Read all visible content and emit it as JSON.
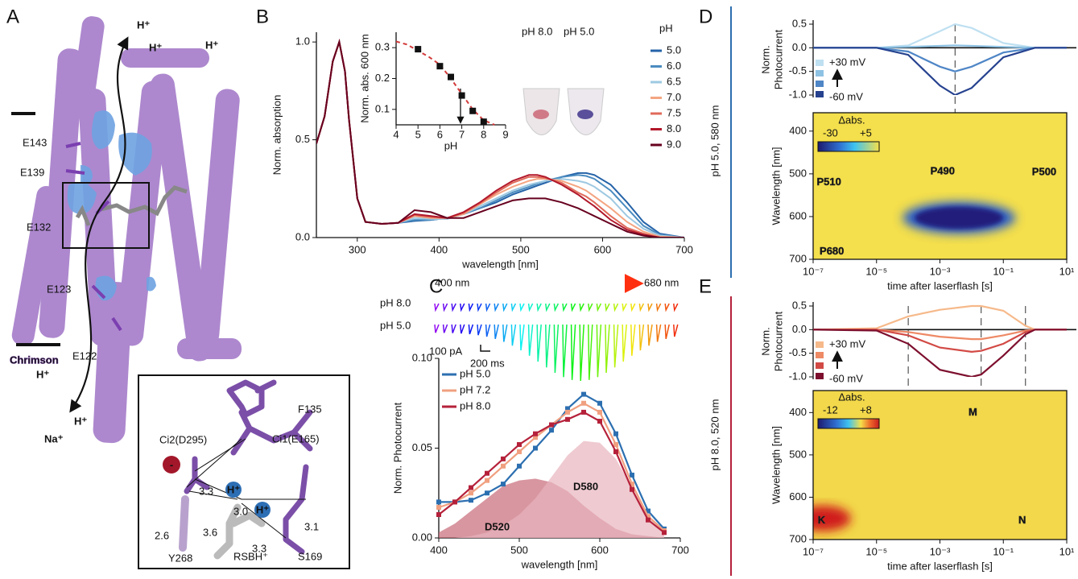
{
  "panel_labels": [
    "A",
    "B",
    "C",
    "D",
    "E"
  ],
  "panel_a": {
    "residues": [
      "E143",
      "E139",
      "E132",
      "E123",
      "E122"
    ],
    "ions": [
      "H⁺",
      "H⁺",
      "H⁺",
      "H⁺",
      "H⁺",
      "Na⁺"
    ],
    "protein": "Chrimson",
    "inset": {
      "residues": [
        "F135",
        "Ci1(E165)",
        "Ci2(D295)",
        "Y268",
        "RSBH⁺",
        "S169"
      ],
      "distances": [
        "3.3",
        "3.0",
        "3.6",
        "2.6",
        "3.3",
        "3.1"
      ],
      "charges": [
        "H⁺",
        "H⁺",
        "-"
      ]
    }
  },
  "panel_b_photo": [
    "pH 8.0",
    "pH 5.0"
  ],
  "panel_c_traces": {
    "start": "400 nm",
    "end": "680 nm",
    "rows": [
      "pH 8.0",
      "pH 5.0"
    ],
    "scale_current": "100 pA",
    "scale_time": "200 ms"
  },
  "side_labels": [
    "pH 5.0, 580 nm",
    "pH 8.0, 520 nm"
  ],
  "chart_data": [
    {
      "type": "line",
      "xlabel": "wavelength [nm]",
      "ylabel": "Norm.  absorption",
      "xlim": [
        250,
        700
      ],
      "ylim": [
        0,
        1.05
      ],
      "xticks": [
        300,
        400,
        500,
        600,
        700
      ],
      "yticks": [
        {
          "value": 0,
          "label": "0.0"
        },
        {
          "value": 0.5,
          "label": "0.5"
        },
        {
          "value": 1,
          "label": "1.0"
        }
      ],
      "legend_title": "pH",
      "x": [
        250,
        260,
        270,
        278,
        285,
        290,
        300,
        310,
        330,
        350,
        370,
        390,
        410,
        430,
        450,
        470,
        490,
        510,
        520,
        530,
        550,
        570,
        580,
        590,
        610,
        630,
        650,
        670,
        700
      ],
      "series": [
        {
          "name": "5.0",
          "color": "#2563a8",
          "values": [
            0.48,
            0.62,
            0.9,
            1.0,
            0.85,
            0.6,
            0.2,
            0.08,
            0.07,
            0.075,
            0.085,
            0.09,
            0.1,
            0.12,
            0.15,
            0.18,
            0.22,
            0.25,
            0.265,
            0.28,
            0.31,
            0.33,
            0.33,
            0.32,
            0.27,
            0.18,
            0.08,
            0.02,
            0
          ]
        },
        {
          "name": "6.0",
          "color": "#4b8cc0",
          "values": [
            0.48,
            0.62,
            0.9,
            1.0,
            0.85,
            0.6,
            0.2,
            0.08,
            0.07,
            0.075,
            0.09,
            0.09,
            0.1,
            0.12,
            0.15,
            0.19,
            0.23,
            0.26,
            0.275,
            0.29,
            0.31,
            0.32,
            0.315,
            0.3,
            0.24,
            0.15,
            0.06,
            0.015,
            0
          ]
        },
        {
          "name": "6.5",
          "color": "#9ec9e2",
          "values": [
            0.48,
            0.62,
            0.9,
            1.0,
            0.85,
            0.6,
            0.2,
            0.08,
            0.07,
            0.075,
            0.1,
            0.095,
            0.095,
            0.12,
            0.16,
            0.2,
            0.24,
            0.27,
            0.28,
            0.29,
            0.3,
            0.29,
            0.28,
            0.26,
            0.2,
            0.11,
            0.045,
            0.01,
            0
          ]
        },
        {
          "name": "7.0",
          "color": "#f4a582",
          "values": [
            0.48,
            0.62,
            0.9,
            1.0,
            0.85,
            0.6,
            0.2,
            0.08,
            0.07,
            0.075,
            0.11,
            0.1,
            0.1,
            0.12,
            0.17,
            0.22,
            0.26,
            0.29,
            0.3,
            0.3,
            0.29,
            0.26,
            0.24,
            0.21,
            0.15,
            0.08,
            0.03,
            0.005,
            0
          ]
        },
        {
          "name": "7.5",
          "color": "#e06a5a",
          "values": [
            0.48,
            0.62,
            0.9,
            1.0,
            0.85,
            0.6,
            0.2,
            0.08,
            0.07,
            0.075,
            0.115,
            0.105,
            0.1,
            0.125,
            0.175,
            0.23,
            0.28,
            0.31,
            0.31,
            0.305,
            0.28,
            0.23,
            0.21,
            0.18,
            0.11,
            0.05,
            0.02,
            0,
            0
          ]
        },
        {
          "name": "8.0",
          "color": "#b2182b",
          "values": [
            0.48,
            0.62,
            0.9,
            1.0,
            0.85,
            0.6,
            0.2,
            0.08,
            0.07,
            0.075,
            0.12,
            0.11,
            0.1,
            0.13,
            0.18,
            0.24,
            0.29,
            0.32,
            0.32,
            0.31,
            0.27,
            0.22,
            0.19,
            0.16,
            0.09,
            0.04,
            0.015,
            0,
            0
          ]
        },
        {
          "name": "9.0",
          "color": "#67001f",
          "values": [
            0.48,
            0.62,
            0.9,
            1.0,
            0.85,
            0.6,
            0.2,
            0.08,
            0.07,
            0.075,
            0.14,
            0.13,
            0.1,
            0.1,
            0.13,
            0.16,
            0.19,
            0.2,
            0.2,
            0.2,
            0.18,
            0.15,
            0.13,
            0.11,
            0.07,
            0.03,
            0.01,
            0,
            0
          ]
        }
      ]
    },
    {
      "type": "scatter",
      "xlabel": "pH",
      "ylabel": "Norm. abs. 600 nm",
      "xlim": [
        4,
        9
      ],
      "ylim": [
        0.05,
        0.35
      ],
      "xticks": [
        4,
        5,
        6,
        7,
        8,
        9
      ],
      "yticks": [
        0.1,
        0.2,
        0.3
      ],
      "x": [
        5,
        6,
        6.5,
        7,
        7.5,
        8
      ],
      "series": [
        {
          "color": "#111111",
          "values": [
            0.295,
            0.24,
            0.205,
            0.145,
            0.095,
            0.06
          ]
        }
      ],
      "fit": {
        "color": "#d33a3a",
        "x": [
          4,
          4.5,
          5,
          5.5,
          6,
          6.5,
          7,
          7.5,
          8,
          8.5
        ],
        "values": [
          0.32,
          0.31,
          0.29,
          0.27,
          0.245,
          0.2,
          0.15,
          0.1,
          0.065,
          0.05
        ]
      }
    },
    {
      "type": "line",
      "xlabel": "wavelength [nm]",
      "ylabel": "Norm. Photocurrent",
      "xlim": [
        400,
        700
      ],
      "ylim": [
        0,
        0.1
      ],
      "xticks": [
        400,
        500,
        600,
        700
      ],
      "yticks": [
        {
          "value": 0,
          "label": "0.00"
        },
        {
          "value": 0.05,
          "label": "0.05"
        },
        {
          "value": 0.1,
          "label": "0.10"
        }
      ],
      "x": [
        400,
        420,
        440,
        460,
        480,
        500,
        520,
        540,
        560,
        580,
        600,
        620,
        640,
        660,
        680
      ],
      "series": [
        {
          "name": "D520",
          "color": "#c76a78",
          "area": true,
          "values": [
            0.003,
            0.008,
            0.015,
            0.022,
            0.029,
            0.032,
            0.033,
            0.031,
            0.026,
            0.018,
            0.011,
            0.005,
            0.002,
            0.001,
            0
          ]
        },
        {
          "name": "D580",
          "color": "#e8b3bd",
          "area": true,
          "values": [
            0,
            0,
            0.001,
            0.003,
            0.007,
            0.013,
            0.022,
            0.034,
            0.046,
            0.054,
            0.053,
            0.044,
            0.028,
            0.013,
            0.004
          ]
        },
        {
          "name": "pH 5.0",
          "color": "#2c6fb0",
          "values": [
            0.02,
            0.02,
            0.021,
            0.025,
            0.03,
            0.04,
            0.05,
            0.06,
            0.072,
            0.08,
            0.075,
            0.058,
            0.035,
            0.015,
            0.005
          ]
        },
        {
          "name": "pH 7.2",
          "color": "#f0a080",
          "values": [
            0.017,
            0.02,
            0.025,
            0.032,
            0.04,
            0.048,
            0.056,
            0.063,
            0.07,
            0.075,
            0.07,
            0.052,
            0.03,
            0.012,
            0.004
          ]
        },
        {
          "name": "pH 8.0",
          "color": "#b5213a",
          "values": [
            0.013,
            0.02,
            0.028,
            0.036,
            0.044,
            0.052,
            0.058,
            0.063,
            0.066,
            0.07,
            0.065,
            0.048,
            0.027,
            0.01,
            0.003
          ]
        }
      ]
    },
    {
      "type": "line",
      "xscale": "log",
      "ylabel": [
        "Norm.",
        "Photocurrent"
      ],
      "xlim": [
        1e-07,
        10
      ],
      "ylim": [
        -1,
        0.5
      ],
      "yticks": [
        {
          "value": 0.5,
          "label": "0.5"
        },
        {
          "value": 0,
          "label": "0.0"
        },
        {
          "value": -0.5,
          "label": "-0.5"
        },
        {
          "value": -1,
          "label": "-1.0"
        }
      ],
      "zero_line": true,
      "vlines": [
        0.003
      ],
      "x": [
        1e-07,
        1e-05,
        0.0001,
        0.001,
        0.003,
        0.01,
        0.1,
        1,
        10
      ],
      "series": [
        {
          "name": "+30 mV",
          "color": "#bfe0f1",
          "values": [
            0,
            0,
            0.05,
            0.35,
            0.5,
            0.42,
            0.1,
            0,
            0
          ]
        },
        {
          "color": "#8ec2e3",
          "values": [
            0,
            0,
            0.02,
            0.04,
            0.05,
            0.04,
            0.02,
            0,
            0
          ]
        },
        {
          "color": "#4f86c6",
          "values": [
            0,
            0,
            -0.08,
            -0.4,
            -0.5,
            -0.4,
            -0.1,
            0,
            0
          ]
        },
        {
          "name": "-60 mV",
          "color": "#26428f",
          "values": [
            0,
            0,
            -0.15,
            -0.8,
            -1,
            -0.85,
            -0.2,
            0,
            0
          ]
        }
      ]
    },
    {
      "type": "heatmap",
      "xscale": "log",
      "xlabel": "time after laserflash [s]",
      "ylabel": "Wavelength [nm]",
      "xlim": [
        1e-07,
        10
      ],
      "ylim": [
        700,
        357
      ],
      "xticks": [
        {
          "value": 1e-07,
          "label": "10⁻⁷"
        },
        {
          "value": 1e-05,
          "label": "10⁻⁵"
        },
        {
          "value": 0.001,
          "label": "10⁻³"
        },
        {
          "value": 0.1,
          "label": "10⁻¹"
        },
        {
          "value": 10,
          "label": "10¹"
        }
      ],
      "yticks": [
        400,
        500,
        600,
        700
      ],
      "annotations": [
        "P510",
        "P490",
        "P500",
        "P680"
      ],
      "colorbar": {
        "title": "Δabs.",
        "ticks": [
          -30,
          {
            "value": 5,
            "label": "+5"
          }
        ]
      }
    },
    {
      "type": "line",
      "xscale": "log",
      "ylabel": [
        "Norm.",
        "Photocurrent"
      ],
      "xlim": [
        1e-07,
        10
      ],
      "ylim": [
        -1,
        0.5
      ],
      "yticks": [
        {
          "value": 0.5,
          "label": "0.5"
        },
        {
          "value": 0,
          "label": "0.0"
        },
        {
          "value": -0.5,
          "label": "-0.5"
        },
        {
          "value": -1,
          "label": "-1.0"
        }
      ],
      "zero_line": true,
      "vlines": [
        0.0001,
        0.02,
        0.5
      ],
      "x": [
        1e-07,
        1e-05,
        0.0001,
        0.001,
        0.01,
        0.02,
        0.1,
        0.5,
        1,
        10
      ],
      "series": [
        {
          "name": "+30 mV",
          "color": "#f6b98a",
          "values": [
            0,
            0.03,
            0.28,
            0.42,
            0.5,
            0.5,
            0.4,
            0.08,
            0,
            0
          ]
        },
        {
          "color": "#ee8a66",
          "values": [
            0,
            0,
            -0.05,
            -0.15,
            -0.2,
            -0.2,
            -0.12,
            -0.02,
            0,
            0
          ]
        },
        {
          "color": "#d24a45",
          "values": [
            0,
            0,
            -0.12,
            -0.38,
            -0.47,
            -0.45,
            -0.3,
            -0.05,
            0,
            0
          ]
        },
        {
          "name": "-60 mV",
          "color": "#7d0f2e",
          "values": [
            0,
            -0.02,
            -0.3,
            -0.85,
            -1,
            -0.95,
            -0.55,
            -0.1,
            0,
            0
          ]
        }
      ]
    },
    {
      "type": "heatmap",
      "xscale": "log",
      "xlabel": "time after laserflash [s]",
      "ylabel": "Wavelength [nm]",
      "xlim": [
        1e-07,
        10
      ],
      "ylim": [
        700,
        348
      ],
      "xticks": [
        {
          "value": 1e-07,
          "label": "10⁻⁷"
        },
        {
          "value": 1e-05,
          "label": "10⁻⁵"
        },
        {
          "value": 0.001,
          "label": "10⁻³"
        },
        {
          "value": 0.1,
          "label": "10⁻¹"
        },
        {
          "value": 10,
          "label": "10¹"
        }
      ],
      "yticks": [
        400,
        500,
        600,
        700
      ],
      "annotations": [
        "M",
        "K",
        "N"
      ],
      "colorbar": {
        "title": "Δabs.",
        "ticks": [
          -12,
          {
            "value": 8,
            "label": "+8"
          }
        ]
      }
    }
  ]
}
